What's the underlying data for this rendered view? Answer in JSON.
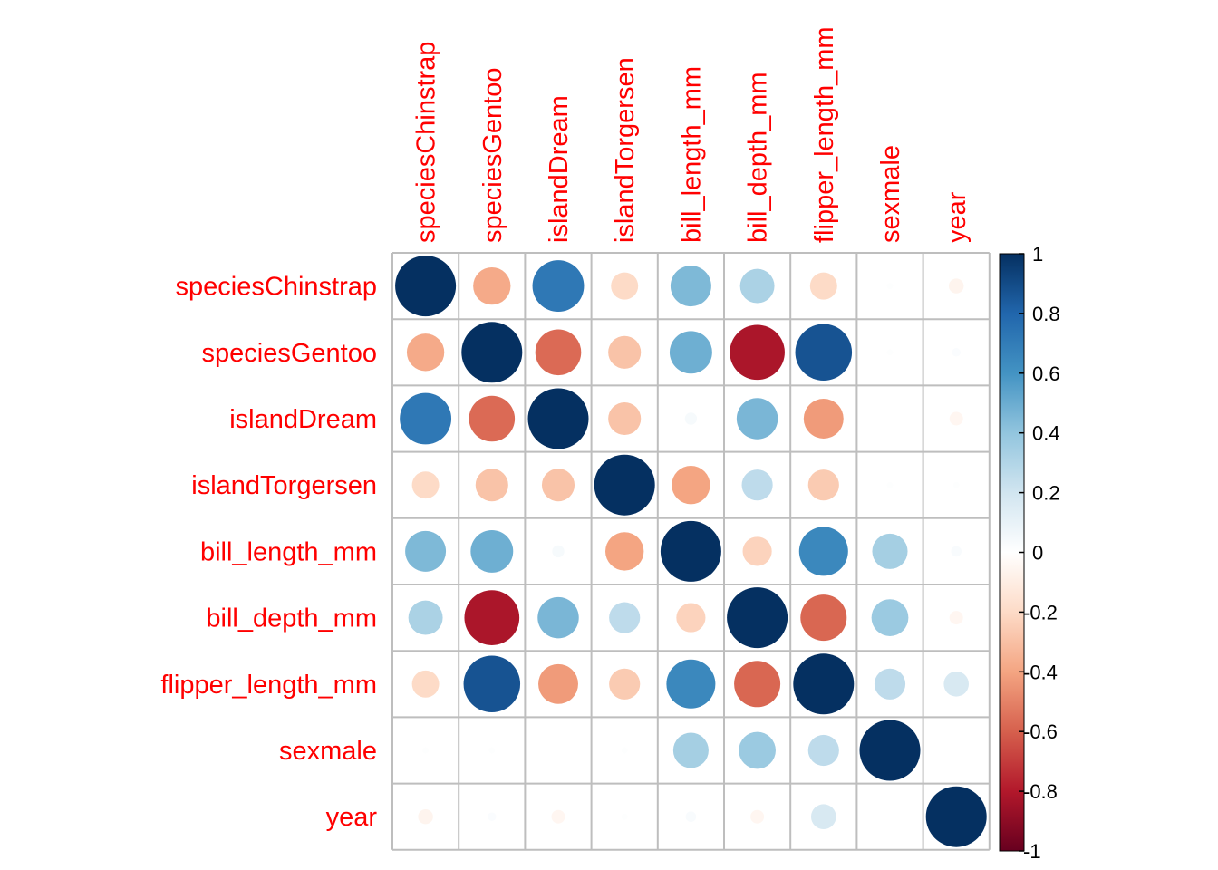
{
  "chart_data": {
    "type": "heatmap",
    "variables": [
      "speciesChinstrap",
      "speciesGentoo",
      "islandDream",
      "islandTorgersen",
      "bill_length_mm",
      "bill_depth_mm",
      "flipper_length_mm",
      "sexmale",
      "year"
    ],
    "matrix": [
      [
        1.0,
        -0.38,
        0.72,
        -0.2,
        0.45,
        0.32,
        -0.2,
        0.01,
        -0.06
      ],
      [
        -0.38,
        1.0,
        -0.57,
        -0.29,
        0.49,
        -0.82,
        0.87,
        0.01,
        0.02
      ],
      [
        0.72,
        -0.57,
        1.0,
        -0.29,
        0.04,
        0.46,
        -0.43,
        0.0,
        -0.05
      ],
      [
        -0.2,
        -0.29,
        -0.29,
        1.0,
        -0.4,
        0.26,
        -0.26,
        0.01,
        0.01
      ],
      [
        0.45,
        0.49,
        0.04,
        -0.4,
        1.0,
        -0.23,
        0.65,
        0.34,
        0.03
      ],
      [
        0.32,
        -0.82,
        0.46,
        0.26,
        -0.23,
        1.0,
        -0.58,
        0.37,
        -0.05
      ],
      [
        -0.2,
        0.87,
        -0.43,
        -0.26,
        0.65,
        -0.58,
        1.0,
        0.26,
        0.17
      ],
      [
        0.01,
        0.01,
        0.0,
        0.01,
        0.34,
        0.37,
        0.26,
        1.0,
        0.0
      ],
      [
        -0.06,
        0.02,
        -0.05,
        0.01,
        0.03,
        -0.05,
        0.17,
        0.0,
        1.0
      ]
    ],
    "colorbar": {
      "ticks": [
        "1",
        "0.8",
        "0.6",
        "0.4",
        "0.2",
        "0",
        "-0.2",
        "-0.4",
        "-0.6",
        "-0.8",
        "-1"
      ],
      "range": [
        -1,
        1
      ],
      "colors": [
        "#67001F",
        "#B2182B",
        "#D6604D",
        "#F4A582",
        "#FDDBC7",
        "#FFFFFF",
        "#D1E5F0",
        "#92C5DE",
        "#4393C3",
        "#2166AC",
        "#053061"
      ]
    },
    "label_color": "#ff0000",
    "grid_color": "#bebebe"
  }
}
